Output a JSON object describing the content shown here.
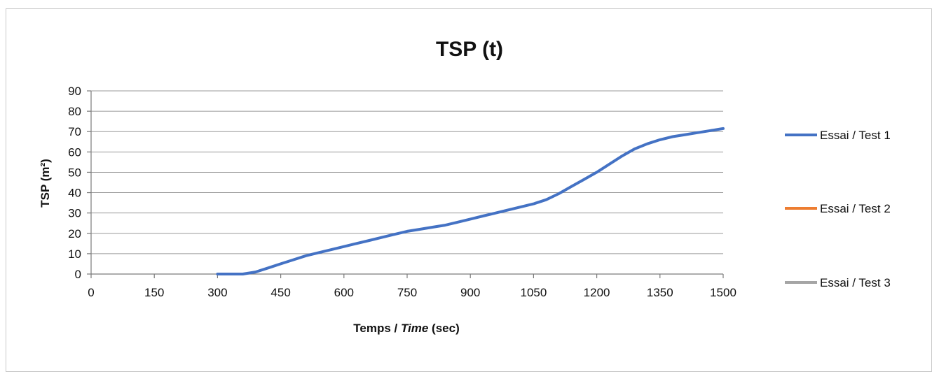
{
  "chart_data": {
    "type": "line",
    "title": "TSP (t)",
    "xlabel": {
      "main": "Temps / ",
      "italic": "Time",
      "unit": " (sec)"
    },
    "ylabel": "TSP (m²)",
    "xlim": [
      0,
      1500
    ],
    "ylim": [
      0,
      90
    ],
    "x_ticks": [
      0,
      150,
      300,
      450,
      600,
      750,
      900,
      1050,
      1200,
      1350,
      1500
    ],
    "y_ticks": [
      0,
      10,
      20,
      30,
      40,
      50,
      60,
      70,
      80,
      90
    ],
    "grid": "horizontal",
    "legend_position": "right",
    "series": [
      {
        "name": "Essai / Test 1",
        "color": "#4472C4",
        "x": [
          300,
          330,
          360,
          390,
          420,
          450,
          480,
          510,
          540,
          570,
          600,
          630,
          660,
          690,
          720,
          750,
          780,
          810,
          840,
          870,
          900,
          930,
          960,
          990,
          1020,
          1050,
          1080,
          1110,
          1140,
          1170,
          1200,
          1230,
          1260,
          1290,
          1320,
          1350,
          1380,
          1410,
          1440,
          1470,
          1500
        ],
        "y": [
          0,
          0,
          0,
          1,
          3,
          5,
          7,
          9,
          10.5,
          12,
          13.5,
          15,
          16.5,
          18,
          19.5,
          21,
          22,
          23,
          24,
          25.5,
          27,
          28.5,
          30,
          31.5,
          33,
          34.5,
          36.5,
          39.5,
          43,
          46.5,
          50,
          54,
          58,
          61.5,
          64,
          66,
          67.5,
          68.5,
          69.5,
          70.5,
          71.5
        ]
      },
      {
        "name": "Essai / Test 2",
        "color": "#ED7D31",
        "x": [],
        "y": []
      },
      {
        "name": "Essai / Test 3",
        "color": "#A5A5A5",
        "x": [],
        "y": []
      }
    ]
  }
}
